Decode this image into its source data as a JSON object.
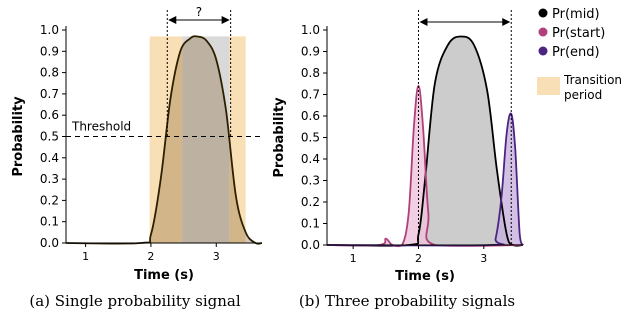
{
  "colors": {
    "transition": "#f9dfb6",
    "mid_fill": "#b0b0b0",
    "start_line": "#b0407a",
    "start_fill": "#eec4dc",
    "end_line": "#4b2580",
    "end_fill": "#c7b2df",
    "threshold": "#000000"
  },
  "chart_data": [
    {
      "type": "area",
      "caption": "(a) Single probability signal",
      "xlabel": "Time (s)",
      "ylabel": "Probability",
      "xlim": [
        0.7,
        3.7
      ],
      "ylim": [
        0.0,
        1.0
      ],
      "xticks": [
        "1",
        "2",
        "3"
      ],
      "yticks": [
        "0.0",
        "0.1",
        "0.2",
        "0.3",
        "0.4",
        "0.5",
        "0.6",
        "0.7",
        "0.8",
        "0.9",
        "1.0"
      ],
      "threshold": {
        "label": "Threshold",
        "value": 0.5
      },
      "question_mark": "?",
      "transition_bands": [
        [
          1.98,
          2.48
        ],
        [
          3.2,
          3.45
        ]
      ],
      "series": [
        {
          "name": "Pr(mid)",
          "x": [
            0.7,
            1.85,
            2.0,
            2.15,
            2.3,
            2.45,
            2.6,
            2.7,
            2.85,
            3.0,
            3.15,
            3.3,
            3.45,
            3.6,
            3.7
          ],
          "y": [
            0,
            0,
            0.04,
            0.3,
            0.68,
            0.9,
            0.96,
            0.97,
            0.95,
            0.86,
            0.62,
            0.22,
            0.05,
            0.0,
            0.0
          ]
        }
      ]
    },
    {
      "type": "area",
      "caption": "(b) Three probability signals",
      "xlabel": "Time (s)",
      "ylabel": "Probability",
      "xlim": [
        0.6,
        3.6
      ],
      "ylim": [
        0.0,
        1.0
      ],
      "xticks": [
        "1",
        "2",
        "3"
      ],
      "yticks": [
        "0.0",
        "0.1",
        "0.2",
        "0.3",
        "0.4",
        "0.5",
        "0.6",
        "0.7",
        "0.8",
        "0.9",
        "1.0"
      ],
      "series": [
        {
          "name": "Pr(mid)",
          "x": [
            0.6,
            1.85,
            2.0,
            2.1,
            2.25,
            2.45,
            2.65,
            2.85,
            3.05,
            3.2,
            3.35,
            3.45,
            3.6
          ],
          "y": [
            0,
            0,
            0.05,
            0.3,
            0.75,
            0.93,
            0.97,
            0.93,
            0.72,
            0.35,
            0.05,
            0,
            0
          ]
        },
        {
          "name": "Pr(start)",
          "x": [
            0.6,
            1.4,
            1.5,
            1.6,
            1.75,
            1.85,
            1.93,
            2.0,
            2.07,
            2.15,
            2.25,
            3.6
          ],
          "y": [
            0,
            0,
            0.03,
            0,
            0,
            0.15,
            0.55,
            0.74,
            0.55,
            0.15,
            0,
            0
          ]
        },
        {
          "name": "Pr(end)",
          "x": [
            0.6,
            3.1,
            3.18,
            3.27,
            3.35,
            3.42,
            3.48,
            3.55,
            3.6
          ],
          "y": [
            0,
            0,
            0.03,
            0.22,
            0.52,
            0.61,
            0.45,
            0.05,
            0
          ]
        }
      ],
      "markers": [
        2.0,
        3.42
      ]
    }
  ],
  "legend": {
    "items": [
      {
        "label": "Pr(mid)",
        "color": "#000000"
      },
      {
        "label": "Pr(start)",
        "color": "#b0407a"
      },
      {
        "label": "Pr(end)",
        "color": "#4b2580"
      }
    ],
    "transition_label_1": "Transition",
    "transition_label_2": "period"
  }
}
